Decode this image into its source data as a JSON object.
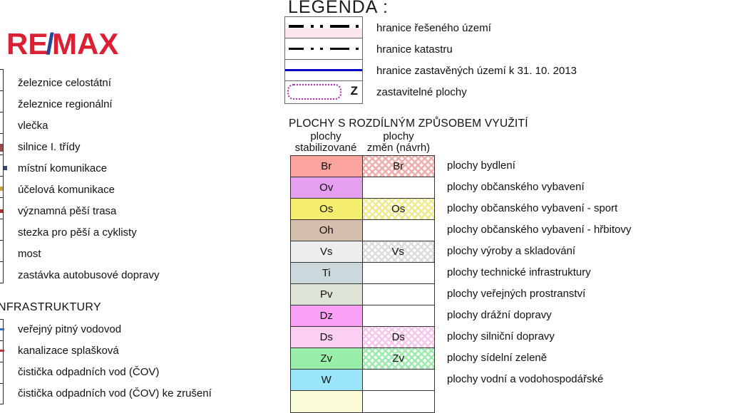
{
  "logo": {
    "re": "RE",
    "slash": "/",
    "max": "MAX",
    "red": "#DA2032",
    "blue": "#25479B"
  },
  "left_legend": {
    "items_transport": [
      {
        "label": "železnice celostátní"
      },
      {
        "label": "železnice regionální"
      },
      {
        "label": "vlečka"
      },
      {
        "label": "silnice I. třídy",
        "mark_color": "#9C4A4A"
      },
      {
        "label": "místní komunikace",
        "mark_color": "#2A4A77"
      },
      {
        "label": "účelová komunikace",
        "mark_color": "#C9A23B"
      },
      {
        "label": "významná pěší trasa",
        "mark_color": "#B52A2A"
      },
      {
        "label": "stezka pro pěší a cyklisty"
      },
      {
        "label": "most"
      },
      {
        "label": "zastávka autobusové dopravy"
      }
    ],
    "heading": "NFRASTRUKTURY",
    "items_infra": [
      {
        "label": "veřejný pitný vodovod",
        "mark_color": "#2E6DB4"
      },
      {
        "label": "kanalizace splašková",
        "mark_color": "#C23030"
      },
      {
        "label": "čistička odpadních vod (ČOV)"
      },
      {
        "label": "čistička odpadních vod (ČOV) ke zrušení"
      }
    ]
  },
  "legenda": {
    "title": "LEGENDA :",
    "z_label": "Z",
    "labels": [
      "hranice řešeného území",
      "hranice katastru",
      "hranice zastavěných území k 31. 10. 2013",
      "zastavitelné plochy"
    ],
    "border_blue": "#0000C8",
    "dotted_magenta": "#B827B8",
    "pink_fill": "#FBE6EF"
  },
  "plochy": {
    "title": "PLOCHY S ROZDÍLNÝM ZPŮSOBEM VYUŽITÍ",
    "col1_header_line1": "plochy",
    "col1_header_line2": "stabilizované",
    "col2_header_line1": "plochy",
    "col2_header_line2": "změn (návrh)",
    "rows": [
      {
        "code": "Br",
        "color": "#FBA49E",
        "change": true,
        "change_color": "#F2ACA7",
        "label": "plochy bydlení"
      },
      {
        "code": "Ov",
        "color": "#E49FEF",
        "change": false,
        "label": "plochy občanského vybavení"
      },
      {
        "code": "Os",
        "color": "#F4EF6E",
        "change": true,
        "change_color": "#EFE98F",
        "label": "plochy občanského vybavení - sport"
      },
      {
        "code": "Oh",
        "color": "#D3BFAB",
        "change": false,
        "label": "plochy občanského vybavení - hřbitovy"
      },
      {
        "code": "Vs",
        "color": "#EEEEEE",
        "change": true,
        "change_color": "#DCDCDC",
        "label": "plochy výroby a skladování",
        "dotted_right": true
      },
      {
        "code": "Ti",
        "color": "#CBD9DD",
        "change": false,
        "label": "plochy technické infrastruktury"
      },
      {
        "code": "Pv",
        "color": "#DDE4D6",
        "change": false,
        "label": "plochy veřejných prostranství"
      },
      {
        "code": "Dz",
        "color": "#FAA0F4",
        "change": false,
        "label": "plochy drážní dopravy"
      },
      {
        "code": "Ds",
        "color": "#FCCFF3",
        "change": true,
        "change_color": "#F7C6EC",
        "label": "plochy silniční dopravy"
      },
      {
        "code": "Zv",
        "color": "#99EFA9",
        "change": true,
        "change_color": "#9CEBAC",
        "label": "plochy sídelní zeleně"
      },
      {
        "code": "W",
        "color": "#9AE5FA",
        "change": false,
        "label": "plochy vodní a vodohospodářské"
      },
      {
        "code": "",
        "color": "#FBFAD6",
        "change": false,
        "label": "",
        "partial": true
      }
    ]
  }
}
